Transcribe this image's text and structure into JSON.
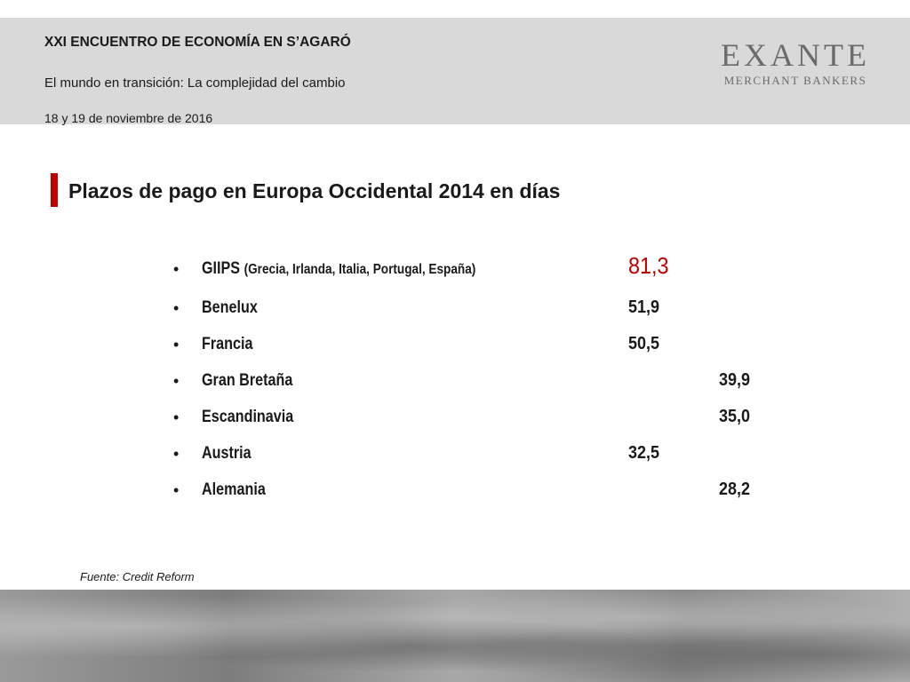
{
  "header": {
    "event_title": "XXI ENCUENTRO DE ECONOMÍA EN S’AGARÓ",
    "event_subtitle": "El mundo en transición: La complejidad del cambio",
    "event_date": "18 y 19 de noviembre de 2016",
    "logo_main": "EXANTE",
    "logo_sub": "MERCHANT BANKERS"
  },
  "slide": {
    "title": "Plazos de pago  en Europa Occidental 2014 en días",
    "items": [
      {
        "label": "GIIPS",
        "note": "(Grecia, Irlanda, Italia, Portugal, España)",
        "value": "81,3"
      },
      {
        "label": "Benelux",
        "value": "51,9"
      },
      {
        "label": "Francia",
        "value": "50,5"
      },
      {
        "label": "Gran Bretaña",
        "value": "39,9"
      },
      {
        "label": "Escandinavia",
        "value": "35,0"
      },
      {
        "label": "Austria",
        "value": "32,5"
      },
      {
        "label": "Alemania",
        "value": "28,2"
      }
    ],
    "source": "Fuente: Credit Reform"
  },
  "colors": {
    "accent": "#c00000",
    "header_bg": "#d9d9d9",
    "logo": "#6b6b6b"
  }
}
